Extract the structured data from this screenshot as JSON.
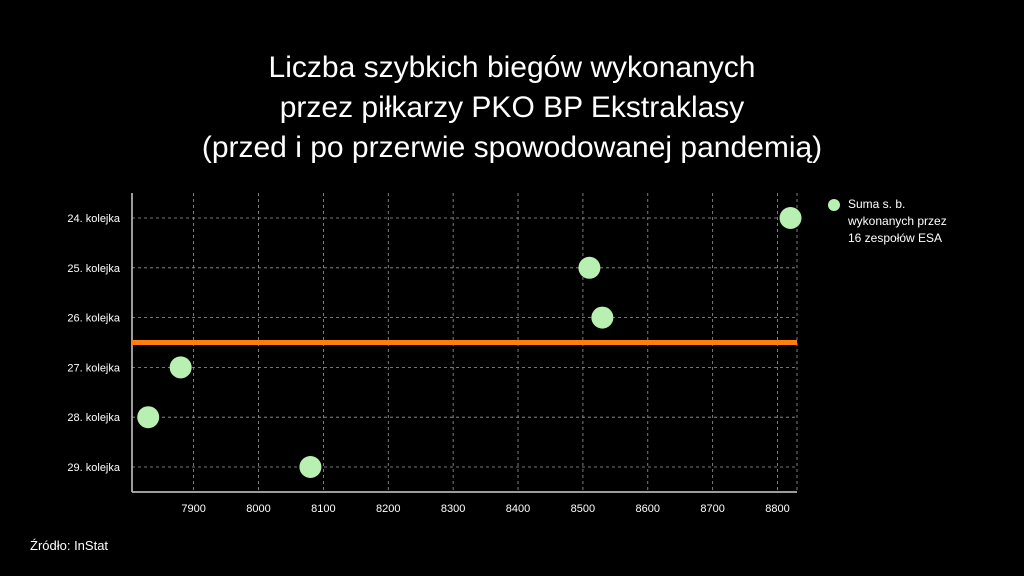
{
  "chart_data": {
    "type": "scatter",
    "title_lines": [
      "Liczba szybkich biegów wykonanych",
      "przez piłkarzy PKO BP Ekstraklasy",
      "(przed i po przerwie spowodowanej pandemią)"
    ],
    "categories": [
      "24. kolejka",
      "25. kolejka",
      "26. kolejka",
      "27. kolejka",
      "28. kolejka",
      "29. kolejka"
    ],
    "series": [
      {
        "name": "Suma s. b.\nwykonanych przez\n16 zespołów ESA",
        "color": "#b7f0b0",
        "values": [
          8820,
          8510,
          8530,
          7880,
          7830,
          8080
        ]
      }
    ],
    "x_ticks": [
      7900,
      8000,
      8100,
      8200,
      8300,
      8400,
      8500,
      8600,
      8700,
      8800
    ],
    "xlim": [
      7805,
      8830
    ],
    "grid": true,
    "grid_style": "dashed",
    "reference_line": {
      "between": [
        "26. kolejka",
        "27. kolejka"
      ],
      "color": "#ff7f0e"
    },
    "legend_position": "right",
    "source": "Źródło: InStat"
  }
}
